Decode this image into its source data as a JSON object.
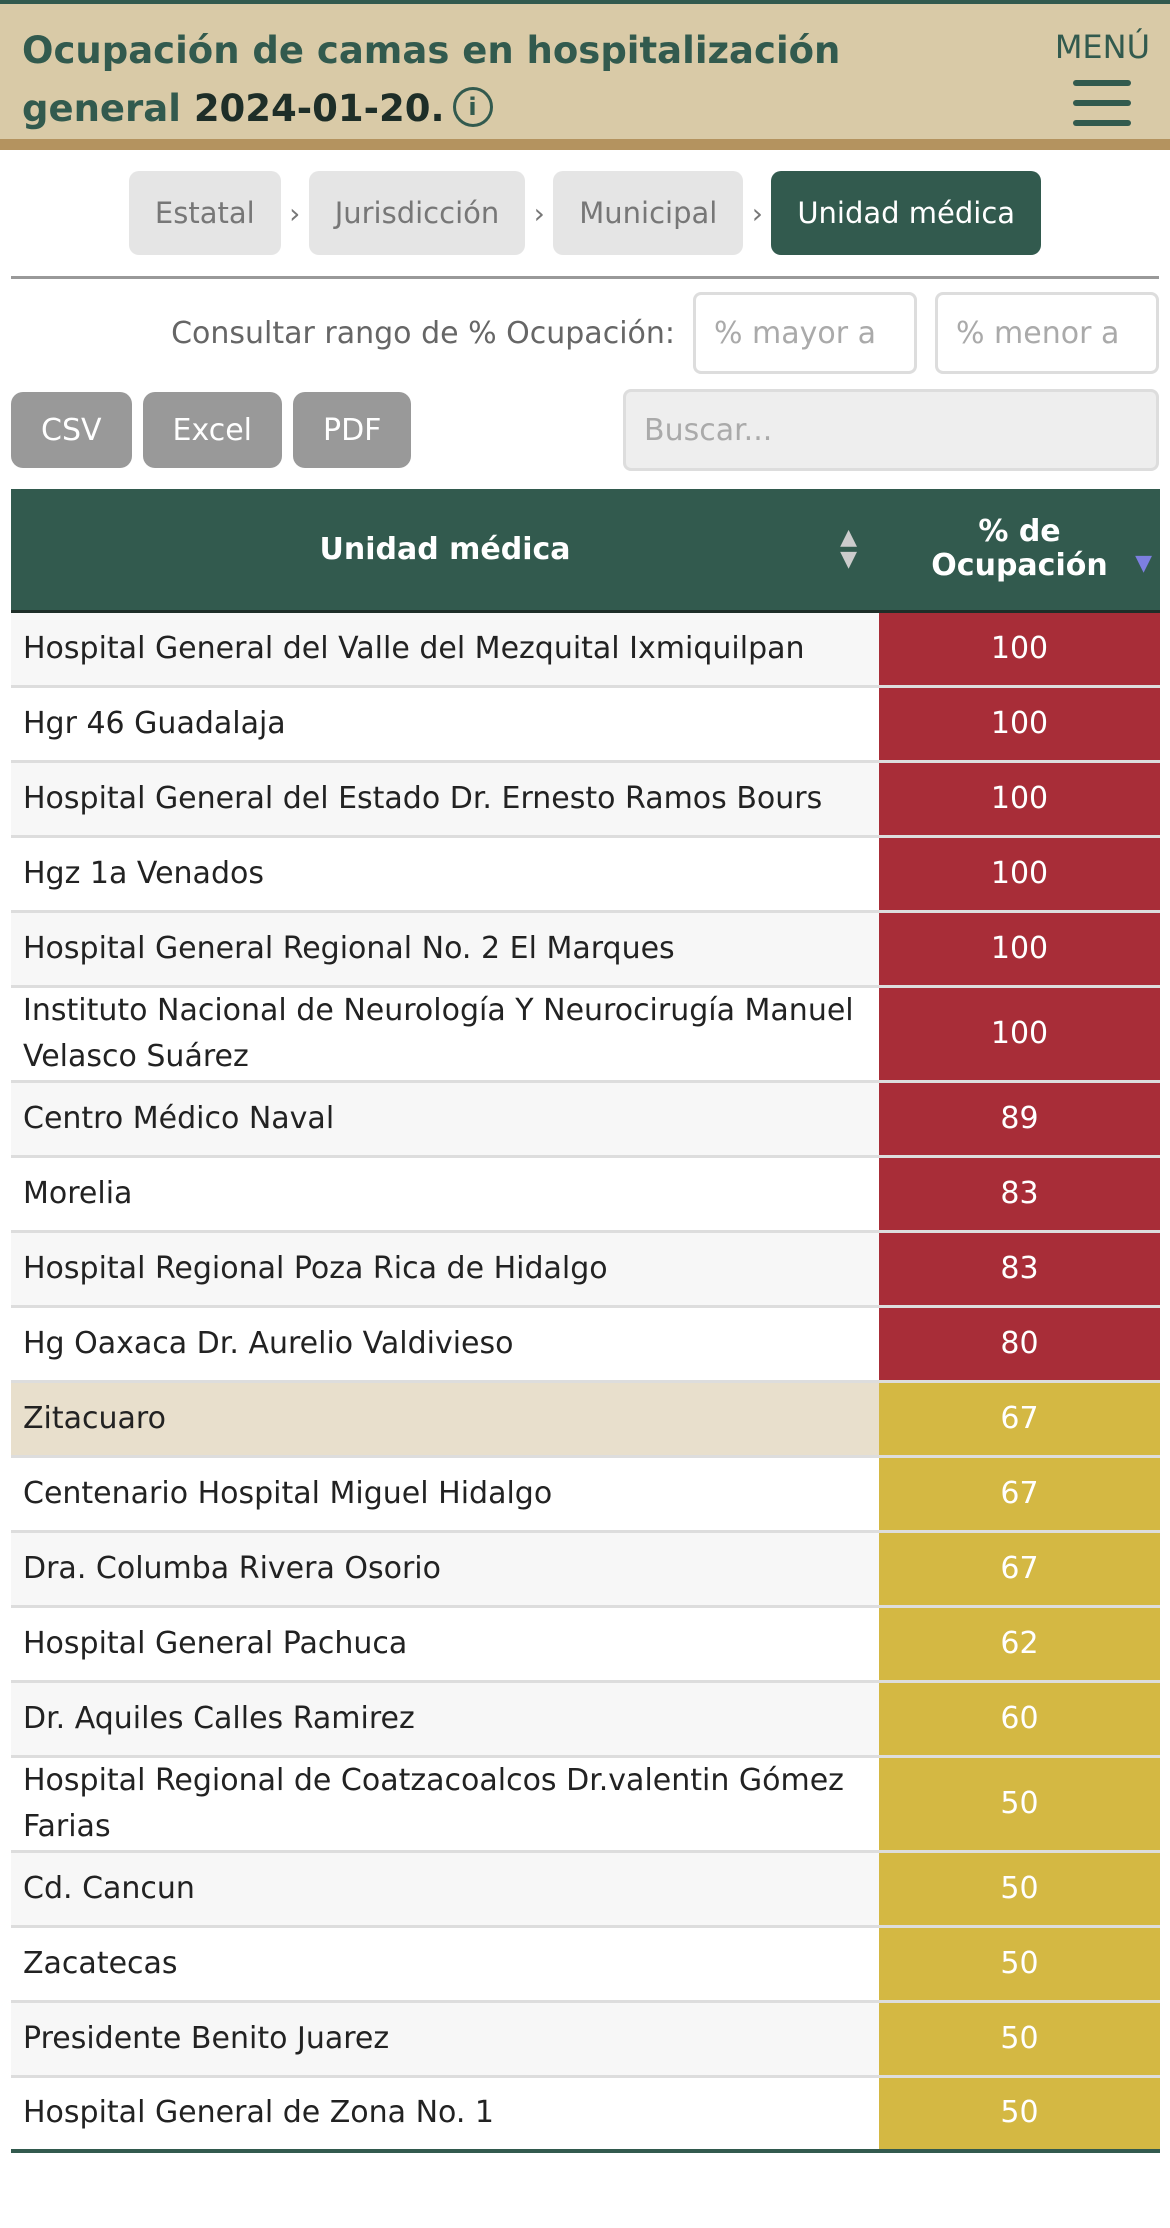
{
  "header": {
    "title": "Ocupación de camas en hospitalización general",
    "date": "2024-01-20.",
    "info_icon": "info-circle-icon",
    "menu_label": "MENÚ"
  },
  "breadcrumbs": [
    {
      "label": "Estatal"
    },
    {
      "label": "Jurisdicción"
    },
    {
      "label": "Municipal"
    },
    {
      "label": "Unidad médica",
      "active": true
    }
  ],
  "range": {
    "label": "Consultar rango de % Ocupación:",
    "min_placeholder": "% mayor a",
    "max_placeholder": "% menor a"
  },
  "export": {
    "csv": "CSV",
    "excel": "Excel",
    "pdf": "PDF"
  },
  "search": {
    "placeholder": "Buscar..."
  },
  "colors": {
    "primary": "#325a4e",
    "header_bg": "#d9caa7",
    "high": "#a82d38",
    "medium": "#d4b843"
  },
  "table": {
    "columns": [
      "Unidad médica",
      "% de Ocupación"
    ],
    "sort": {
      "column": "% de Ocupación",
      "direction": "desc"
    },
    "rows": [
      {
        "name": "Hospital General del Valle del Mezquital Ixmiquilpan",
        "pct": "100",
        "level": "high"
      },
      {
        "name": "Hgr 46 Guadalaja",
        "pct": "100",
        "level": "high"
      },
      {
        "name": "Hospital General del Estado Dr. Ernesto Ramos Bours",
        "pct": "100",
        "level": "high"
      },
      {
        "name": "Hgz 1a Venados",
        "pct": "100",
        "level": "high"
      },
      {
        "name": "Hospital General Regional No. 2 El Marques",
        "pct": "100",
        "level": "high"
      },
      {
        "name": "Instituto Nacional de Neurología Y Neurocirugía Manuel Velasco Suárez",
        "pct": "100",
        "level": "high"
      },
      {
        "name": "Centro Médico Naval",
        "pct": "89",
        "level": "high"
      },
      {
        "name": "Morelia",
        "pct": "83",
        "level": "high"
      },
      {
        "name": "Hospital Regional Poza Rica de Hidalgo",
        "pct": "83",
        "level": "high"
      },
      {
        "name": "Hg Oaxaca Dr. Aurelio Valdivieso",
        "pct": "80",
        "level": "high"
      },
      {
        "name": "Zitacuaro",
        "pct": "67",
        "level": "medium",
        "highlighted": true
      },
      {
        "name": "Centenario Hospital Miguel Hidalgo",
        "pct": "67",
        "level": "medium"
      },
      {
        "name": "Dra. Columba Rivera Osorio",
        "pct": "67",
        "level": "medium"
      },
      {
        "name": "Hospital General Pachuca",
        "pct": "62",
        "level": "medium"
      },
      {
        "name": "Dr. Aquiles Calles Ramirez",
        "pct": "60",
        "level": "medium"
      },
      {
        "name": "Hospital Regional de Coatzacoalcos Dr.valentin Gómez Farias",
        "pct": "50",
        "level": "medium"
      },
      {
        "name": "Cd. Cancun",
        "pct": "50",
        "level": "medium"
      },
      {
        "name": "Zacatecas",
        "pct": "50",
        "level": "medium"
      },
      {
        "name": "Presidente Benito Juarez",
        "pct": "50",
        "level": "medium"
      },
      {
        "name": "Hospital General de Zona No. 1",
        "pct": "50",
        "level": "medium"
      }
    ]
  }
}
